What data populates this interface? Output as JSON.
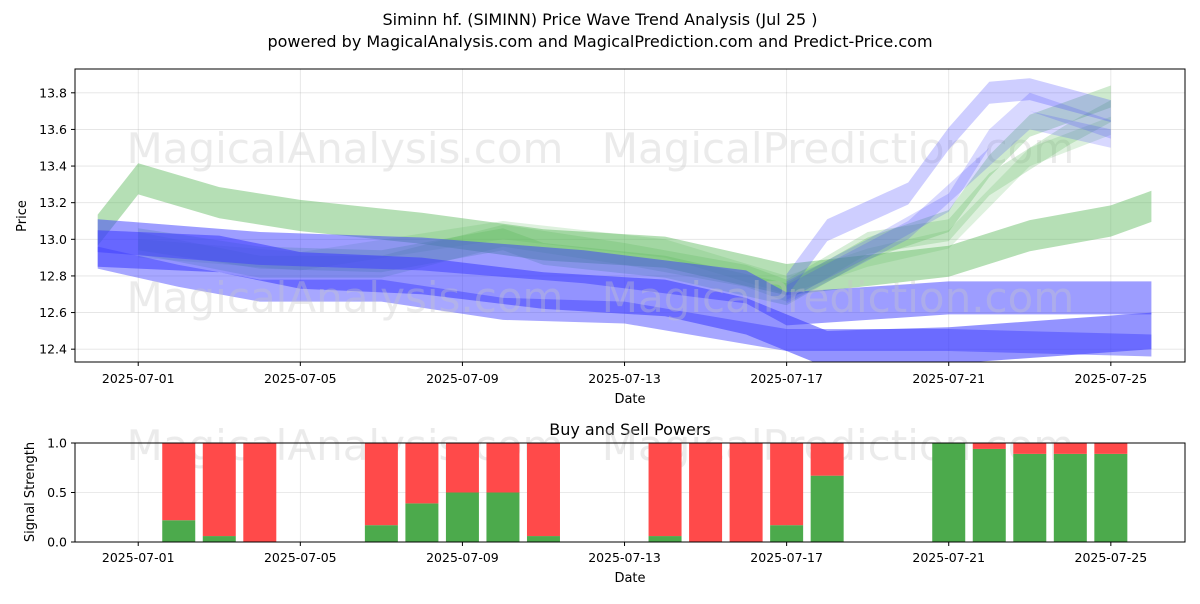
{
  "header": {
    "title_line1": "Siminn hf. (SIMINN) Price Wave Trend Analysis (Jul 25 )",
    "title_line2": "powered by MagicalAnalysis.com and MagicalPrediction.com and Predict-Price.com"
  },
  "watermarks": {
    "left": "MagicalAnalysis.com",
    "right": "MagicalPrediction.com"
  },
  "colors": {
    "green_band": "#5cb85c",
    "blue_band": "#3b3bff",
    "buy": "#4caa4c",
    "sell": "#ff4a4a"
  },
  "chart_data": [
    {
      "type": "area",
      "xlabel": "Date",
      "ylabel": "Price",
      "x_ticks": [
        "2025-07-01",
        "2025-07-05",
        "2025-07-09",
        "2025-07-13",
        "2025-07-17",
        "2025-07-21",
        "2025-07-25"
      ],
      "y_ticks": [
        "12.4",
        "12.6",
        "12.8",
        "13.0",
        "13.2",
        "13.4",
        "13.6",
        "13.8"
      ],
      "ylim": [
        12.33,
        13.93
      ],
      "xlim": [
        "2025-06-29",
        "2025-07-26"
      ],
      "grid": true,
      "series": [
        {
          "color": "green",
          "opacity": 0.45,
          "points": [
            [
              "2025-06-30",
              13.05
            ],
            [
              "2025-07-01",
              13.33
            ],
            [
              "2025-07-03",
              13.2
            ],
            [
              "2025-07-05",
              13.13
            ],
            [
              "2025-07-08",
              13.06
            ],
            [
              "2025-07-11",
              12.97
            ],
            [
              "2025-07-14",
              12.93
            ],
            [
              "2025-07-17",
              12.78
            ],
            [
              "2025-07-19",
              12.83
            ],
            [
              "2025-07-21",
              12.88
            ],
            [
              "2025-07-23",
              13.02
            ],
            [
              "2025-07-25",
              13.1
            ],
            [
              "2025-07-26",
              13.18
            ]
          ],
          "width": 0.17
        },
        {
          "color": "green",
          "opacity": 0.3,
          "points": [
            [
              "2025-07-01",
              13.0
            ],
            [
              "2025-07-04",
              12.9
            ],
            [
              "2025-07-07",
              12.88
            ],
            [
              "2025-07-10",
              13.0
            ],
            [
              "2025-07-11",
              12.92
            ],
            [
              "2025-07-14",
              12.85
            ],
            [
              "2025-07-17",
              12.7
            ],
            [
              "2025-07-19",
              12.95
            ],
            [
              "2025-07-21",
              13.1
            ],
            [
              "2025-07-22",
              13.4
            ],
            [
              "2025-07-23",
              13.62
            ],
            [
              "2025-07-25",
              13.78
            ]
          ],
          "width": 0.12
        },
        {
          "color": "green",
          "opacity": 0.25,
          "points": [
            [
              "2025-07-01",
              12.98
            ],
            [
              "2025-07-04",
              12.85
            ],
            [
              "2025-07-07",
              12.85
            ],
            [
              "2025-07-10",
              13.02
            ],
            [
              "2025-07-13",
              12.92
            ],
            [
              "2025-07-16",
              12.8
            ],
            [
              "2025-07-17",
              12.72
            ],
            [
              "2025-07-19",
              12.98
            ],
            [
              "2025-07-21",
              13.05
            ],
            [
              "2025-07-22",
              13.3
            ],
            [
              "2025-07-24",
              13.58
            ],
            [
              "2025-07-25",
              13.7
            ]
          ],
          "width": 0.12
        },
        {
          "color": "green",
          "opacity": 0.2,
          "points": [
            [
              "2025-07-01",
              12.95
            ],
            [
              "2025-07-05",
              12.88
            ],
            [
              "2025-07-10",
              13.05
            ],
            [
              "2025-07-14",
              12.95
            ],
            [
              "2025-07-17",
              12.75
            ],
            [
              "2025-07-19",
              12.9
            ],
            [
              "2025-07-21",
              13.0
            ],
            [
              "2025-07-23",
              13.45
            ],
            [
              "2025-07-25",
              13.62
            ]
          ],
          "width": 0.1
        },
        {
          "color": "blue",
          "opacity": 0.55,
          "points": [
            [
              "2025-06-30",
              12.95
            ],
            [
              "2025-07-03",
              12.92
            ],
            [
              "2025-07-05",
              12.83
            ],
            [
              "2025-07-08",
              12.8
            ],
            [
              "2025-07-11",
              12.72
            ],
            [
              "2025-07-14",
              12.68
            ],
            [
              "2025-07-16",
              12.58
            ],
            [
              "2025-07-18",
              12.4
            ],
            [
              "2025-07-21",
              12.42
            ],
            [
              "2025-07-26",
              12.5
            ]
          ],
          "width": 0.2
        },
        {
          "color": "blue",
          "opacity": 0.5,
          "points": [
            [
              "2025-06-30",
              13.02
            ],
            [
              "2025-07-04",
              12.95
            ],
            [
              "2025-07-08",
              12.92
            ],
            [
              "2025-07-12",
              12.85
            ],
            [
              "2025-07-16",
              12.74
            ],
            [
              "2025-07-17",
              12.62
            ],
            [
              "2025-07-21",
              12.68
            ],
            [
              "2025-07-26",
              12.68
            ]
          ],
          "width": 0.18
        },
        {
          "color": "blue",
          "opacity": 0.45,
          "points": [
            [
              "2025-06-30",
              12.9
            ],
            [
              "2025-07-02",
              12.8
            ],
            [
              "2025-07-04",
              12.72
            ],
            [
              "2025-07-07",
              12.72
            ],
            [
              "2025-07-10",
              12.62
            ],
            [
              "2025-07-13",
              12.6
            ],
            [
              "2025-07-17",
              12.45
            ],
            [
              "2025-07-21",
              12.45
            ],
            [
              "2025-07-26",
              12.42
            ]
          ],
          "width": 0.12
        },
        {
          "color": "blue",
          "opacity": 0.25,
          "points": [
            [
              "2025-07-17",
              12.75
            ],
            [
              "2025-07-18",
              13.05
            ],
            [
              "2025-07-20",
              13.25
            ],
            [
              "2025-07-21",
              13.55
            ],
            [
              "2025-07-22",
              13.8
            ],
            [
              "2025-07-23",
              13.82
            ],
            [
              "2025-07-25",
              13.7
            ]
          ],
          "width": 0.12
        },
        {
          "color": "blue",
          "opacity": 0.2,
          "points": [
            [
              "2025-07-17",
              12.72
            ],
            [
              "2025-07-19",
              12.95
            ],
            [
              "2025-07-21",
              13.2
            ],
            [
              "2025-07-22",
              13.55
            ],
            [
              "2025-07-23",
              13.75
            ],
            [
              "2025-07-25",
              13.6
            ]
          ],
          "width": 0.1
        },
        {
          "color": "blue",
          "opacity": 0.2,
          "points": [
            [
              "2025-07-17",
              12.7
            ],
            [
              "2025-07-20",
              13.05
            ],
            [
              "2025-07-21",
              13.25
            ],
            [
              "2025-07-23",
              13.65
            ],
            [
              "2025-07-25",
              13.55
            ]
          ],
          "width": 0.1
        }
      ]
    },
    {
      "type": "bar",
      "title": "Buy and Sell Powers",
      "xlabel": "Date",
      "ylabel": "Signal Strength",
      "x_ticks": [
        "2025-07-01",
        "2025-07-05",
        "2025-07-09",
        "2025-07-13",
        "2025-07-17",
        "2025-07-21",
        "2025-07-25"
      ],
      "y_ticks": [
        "0.0",
        "0.5",
        "1.0"
      ],
      "ylim": [
        0,
        1
      ],
      "xlim": [
        "2025-06-29",
        "2025-07-26"
      ],
      "categories": [
        "2025-07-02",
        "2025-07-03",
        "2025-07-04",
        "2025-07-07",
        "2025-07-08",
        "2025-07-09",
        "2025-07-10",
        "2025-07-11",
        "2025-07-14",
        "2025-07-15",
        "2025-07-16",
        "2025-07-17",
        "2025-07-18",
        "2025-07-21",
        "2025-07-22",
        "2025-07-23",
        "2025-07-24",
        "2025-07-25"
      ],
      "series": [
        {
          "role": "buy",
          "values": [
            0.22,
            0.06,
            0.0,
            0.17,
            0.39,
            0.5,
            0.5,
            0.06,
            0.06,
            0.0,
            0.0,
            0.17,
            0.67,
            1.0,
            0.94,
            0.89,
            0.89,
            0.89
          ]
        },
        {
          "role": "sell",
          "values": [
            0.78,
            0.94,
            1.0,
            0.83,
            0.61,
            0.5,
            0.5,
            0.94,
            0.94,
            1.0,
            1.0,
            0.83,
            0.33,
            0.0,
            0.06,
            0.11,
            0.11,
            0.11
          ]
        }
      ]
    }
  ]
}
